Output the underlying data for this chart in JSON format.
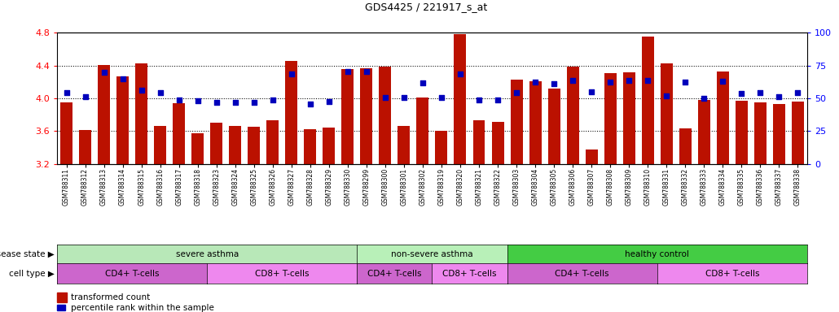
{
  "title": "GDS4425 / 221917_s_at",
  "samples": [
    "GSM788311",
    "GSM788312",
    "GSM788313",
    "GSM788314",
    "GSM788315",
    "GSM788316",
    "GSM788317",
    "GSM788318",
    "GSM788323",
    "GSM788324",
    "GSM788325",
    "GSM788326",
    "GSM788327",
    "GSM788328",
    "GSM788329",
    "GSM788330",
    "GSM788299",
    "GSM788300",
    "GSM788301",
    "GSM788302",
    "GSM788319",
    "GSM788320",
    "GSM788321",
    "GSM788322",
    "GSM788303",
    "GSM788304",
    "GSM788305",
    "GSM788306",
    "GSM788307",
    "GSM788308",
    "GSM788309",
    "GSM788310",
    "GSM788331",
    "GSM788332",
    "GSM788333",
    "GSM788334",
    "GSM788335",
    "GSM788336",
    "GSM788337",
    "GSM788338"
  ],
  "bar_values": [
    3.95,
    3.61,
    4.41,
    4.27,
    4.43,
    3.66,
    3.94,
    3.57,
    3.7,
    3.66,
    3.65,
    3.73,
    4.46,
    3.62,
    3.64,
    4.36,
    4.37,
    4.39,
    3.66,
    4.01,
    3.6,
    4.78,
    3.73,
    3.71,
    4.23,
    4.21,
    4.12,
    4.39,
    3.37,
    4.31,
    4.32,
    4.75,
    4.43,
    3.63,
    3.98,
    4.33,
    3.97,
    3.95,
    3.93,
    3.96
  ],
  "percentile_values": [
    4.07,
    4.02,
    4.32,
    4.24,
    4.1,
    4.07,
    3.98,
    3.97,
    3.95,
    3.95,
    3.95,
    3.98,
    4.3,
    3.93,
    3.96,
    4.33,
    4.33,
    4.01,
    4.01,
    4.19,
    4.01,
    4.3,
    3.98,
    3.98,
    4.07,
    4.2,
    4.18,
    4.22,
    4.08,
    4.2,
    4.22,
    4.22,
    4.03,
    4.2,
    4.0,
    4.21,
    4.06,
    4.07,
    4.02,
    4.07
  ],
  "disease_state_groups": [
    {
      "label": "severe asthma",
      "start": 0,
      "end": 15,
      "color": "#b8e8b8"
    },
    {
      "label": "non-severe asthma",
      "start": 16,
      "end": 23,
      "color": "#b8f0b8"
    },
    {
      "label": "healthy control",
      "start": 24,
      "end": 39,
      "color": "#44cc44"
    }
  ],
  "cell_type_groups": [
    {
      "label": "CD4+ T-cells",
      "start": 0,
      "end": 7,
      "color": "#cc66cc"
    },
    {
      "label": "CD8+ T-cells",
      "start": 8,
      "end": 15,
      "color": "#ee88ee"
    },
    {
      "label": "CD4+ T-cells",
      "start": 16,
      "end": 19,
      "color": "#cc66cc"
    },
    {
      "label": "CD8+ T-cells",
      "start": 20,
      "end": 23,
      "color": "#ee88ee"
    },
    {
      "label": "CD4+ T-cells",
      "start": 24,
      "end": 31,
      "color": "#cc66cc"
    },
    {
      "label": "CD8+ T-cells",
      "start": 32,
      "end": 39,
      "color": "#ee88ee"
    }
  ],
  "ymin": 3.2,
  "ymax": 4.8,
  "yticks": [
    3.2,
    3.6,
    4.0,
    4.4,
    4.8
  ],
  "y2ticks": [
    0,
    25,
    50,
    75,
    100
  ],
  "bar_color": "#BB1100",
  "dot_color": "#0000BB",
  "bar_width": 0.65,
  "legend1": "transformed count",
  "legend2": "percentile rank within the sample",
  "grid_lines": [
    3.6,
    4.0,
    4.4
  ]
}
